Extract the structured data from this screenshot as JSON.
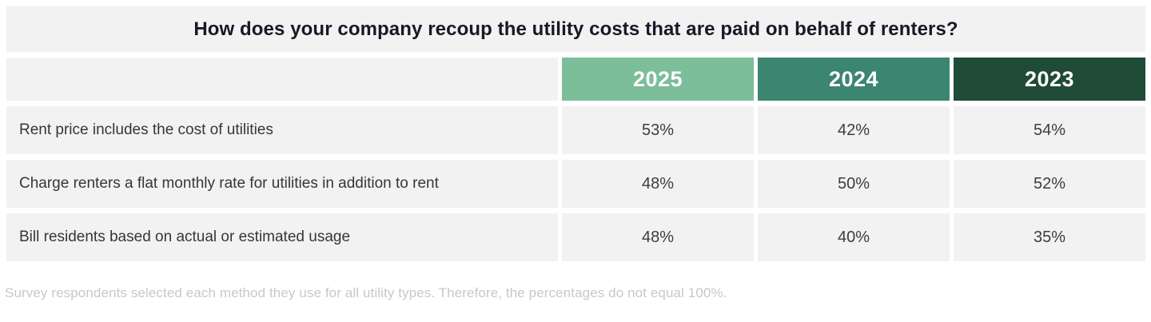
{
  "colors": {
    "year_2025": "#7cbe9a",
    "year_2024": "#3b8571",
    "year_2023": "#1f4b37",
    "band_bg": "#f3f2f2",
    "title_text": "#181826",
    "footnote_text": "#c9c8c8"
  },
  "chart_data": {
    "type": "table",
    "title": "How does your company recoup the utility costs that are paid on behalf of renters?",
    "columns": [
      "2025",
      "2024",
      "2023"
    ],
    "rows": [
      {
        "label": "Rent price includes the cost of utilities",
        "values": [
          "53%",
          "42%",
          "54%"
        ]
      },
      {
        "label": "Charge renters a flat monthly rate for utilities in addition to rent",
        "values": [
          "48%",
          "50%",
          "52%"
        ]
      },
      {
        "label": "Bill residents based on actual or estimated usage",
        "values": [
          "48%",
          "40%",
          "35%"
        ]
      }
    ],
    "footnote": "Survey respondents selected each method they use for all utility types. Therefore, the percentages do not equal 100%."
  }
}
